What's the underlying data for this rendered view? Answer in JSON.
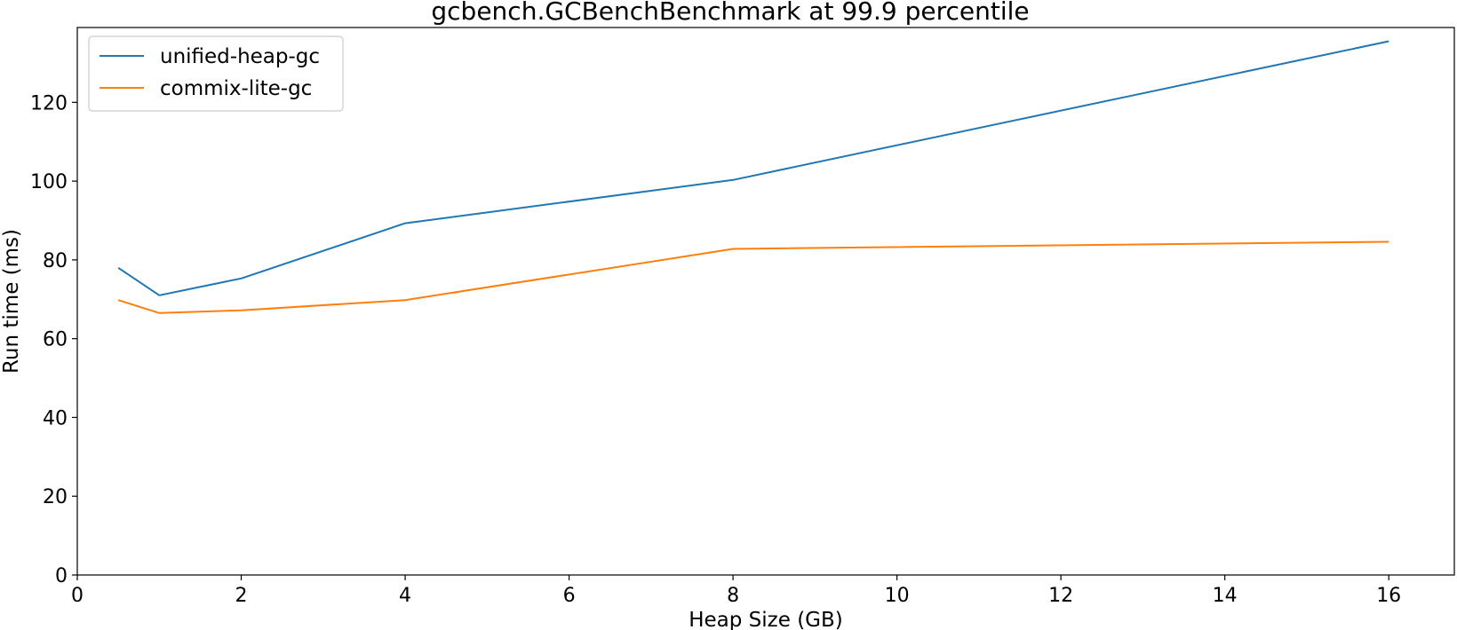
{
  "chart_data": {
    "type": "line",
    "title": "gcbench.GCBenchBenchmark at 99.9 percentile",
    "xlabel": "Heap Size (GB)",
    "ylabel": "Run time (ms)",
    "xlim": [
      0,
      16.8
    ],
    "ylim": [
      0,
      139
    ],
    "xticks": [
      0,
      2,
      4,
      6,
      8,
      10,
      12,
      14,
      16
    ],
    "yticks": [
      0,
      20,
      40,
      60,
      80,
      100,
      120
    ],
    "grid": false,
    "legend_position": "top-left",
    "x": [
      0.5,
      1,
      2,
      4,
      8,
      16
    ],
    "series": [
      {
        "name": "unified-heap-gc",
        "color": "#1f77b4",
        "values": [
          78.0,
          71.0,
          75.3,
          89.3,
          100.3,
          135.5
        ]
      },
      {
        "name": "commix-lite-gc",
        "color": "#ff7f0e",
        "values": [
          69.8,
          66.5,
          67.2,
          69.8,
          82.8,
          84.6
        ]
      }
    ]
  }
}
